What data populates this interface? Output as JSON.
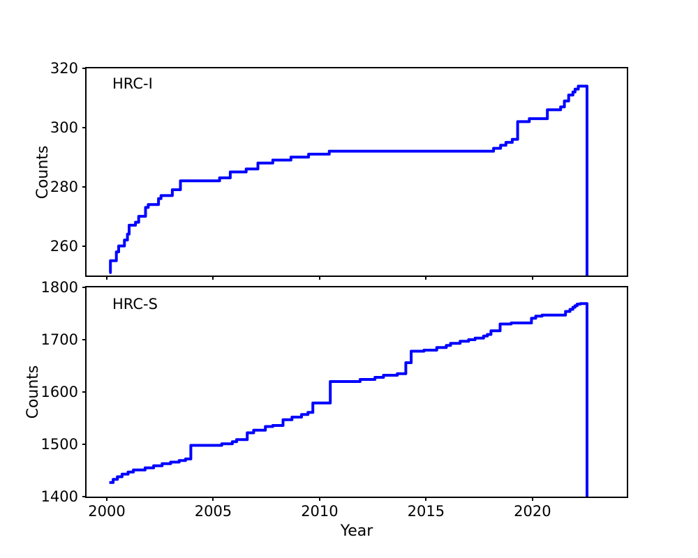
{
  "figure": {
    "background": "#ffffff",
    "line_color": "#0000ff",
    "axis_color": "#000000"
  },
  "chart_data": [
    {
      "type": "line",
      "line_style": "step",
      "annotation": "HRC-I",
      "ylabel": "Counts",
      "xlabel": "",
      "xlim": [
        1999.05,
        2024.43
      ],
      "ylim": [
        250,
        320
      ],
      "xticks": [
        2000,
        2005,
        2010,
        2015,
        2020
      ],
      "xtick_labels": [
        "2000",
        "2005",
        "2010",
        "2015",
        "2020"
      ],
      "xtick_labels_visible": false,
      "yticks": [
        260,
        280,
        300,
        320
      ],
      "ytick_labels": [
        "260",
        "280",
        "300",
        "320"
      ],
      "grid": false,
      "legend": "none",
      "points": [
        [
          2000.12,
          251
        ],
        [
          2000.17,
          255
        ],
        [
          2000.45,
          258
        ],
        [
          2000.56,
          260
        ],
        [
          2000.83,
          262
        ],
        [
          2000.97,
          264
        ],
        [
          2001.05,
          267
        ],
        [
          2001.35,
          268
        ],
        [
          2001.5,
          270
        ],
        [
          2001.82,
          273
        ],
        [
          2001.95,
          274
        ],
        [
          2002.43,
          276
        ],
        [
          2002.55,
          277
        ],
        [
          2003.08,
          279
        ],
        [
          2003.46,
          282
        ],
        [
          2005.3,
          283
        ],
        [
          2005.8,
          285
        ],
        [
          2006.55,
          286
        ],
        [
          2007.1,
          288
        ],
        [
          2007.8,
          289
        ],
        [
          2008.65,
          290
        ],
        [
          2009.48,
          291
        ],
        [
          2010.45,
          292
        ],
        [
          2018.17,
          293
        ],
        [
          2018.5,
          294
        ],
        [
          2018.75,
          295
        ],
        [
          2019.05,
          296
        ],
        [
          2019.3,
          302
        ],
        [
          2019.85,
          303
        ],
        [
          2020.7,
          306
        ],
        [
          2021.32,
          307
        ],
        [
          2021.5,
          309
        ],
        [
          2021.7,
          311
        ],
        [
          2021.9,
          312
        ],
        [
          2022.0,
          313
        ],
        [
          2022.15,
          314
        ],
        [
          2022.56,
          250
        ]
      ]
    },
    {
      "type": "line",
      "line_style": "step",
      "annotation": "HRC-S",
      "ylabel": "Counts",
      "xlabel": "Year",
      "xlim": [
        1999.05,
        2024.43
      ],
      "ylim": [
        1400,
        1800
      ],
      "xticks": [
        2000,
        2005,
        2010,
        2015,
        2020
      ],
      "xtick_labels": [
        "2000",
        "2005",
        "2010",
        "2015",
        "2020"
      ],
      "xtick_labels_visible": true,
      "yticks": [
        1400,
        1500,
        1600,
        1700,
        1800
      ],
      "ytick_labels": [
        "1400",
        "1500",
        "1600",
        "1700",
        "1800"
      ],
      "grid": false,
      "legend": "none",
      "points": [
        [
          2000.12,
          1427
        ],
        [
          2000.3,
          1433
        ],
        [
          2000.5,
          1438
        ],
        [
          2000.72,
          1443
        ],
        [
          2001.0,
          1447
        ],
        [
          2001.25,
          1451
        ],
        [
          2001.8,
          1455
        ],
        [
          2002.2,
          1459
        ],
        [
          2002.6,
          1463
        ],
        [
          2003.0,
          1466
        ],
        [
          2003.4,
          1469
        ],
        [
          2003.7,
          1472
        ],
        [
          2003.95,
          1498
        ],
        [
          2005.4,
          1501
        ],
        [
          2005.9,
          1505
        ],
        [
          2006.1,
          1509
        ],
        [
          2006.6,
          1522
        ],
        [
          2006.9,
          1527
        ],
        [
          2007.45,
          1534
        ],
        [
          2007.8,
          1536
        ],
        [
          2008.28,
          1547
        ],
        [
          2008.7,
          1552
        ],
        [
          2009.15,
          1557
        ],
        [
          2009.45,
          1561
        ],
        [
          2009.68,
          1579
        ],
        [
          2010.5,
          1620
        ],
        [
          2011.9,
          1624
        ],
        [
          2012.6,
          1628
        ],
        [
          2013.0,
          1632
        ],
        [
          2013.65,
          1635
        ],
        [
          2014.05,
          1656
        ],
        [
          2014.3,
          1678
        ],
        [
          2014.9,
          1680
        ],
        [
          2015.5,
          1685
        ],
        [
          2015.95,
          1689
        ],
        [
          2016.15,
          1693
        ],
        [
          2016.6,
          1697
        ],
        [
          2017.0,
          1700
        ],
        [
          2017.3,
          1703
        ],
        [
          2017.7,
          1707
        ],
        [
          2017.88,
          1710
        ],
        [
          2018.05,
          1717
        ],
        [
          2018.48,
          1730
        ],
        [
          2019.0,
          1732
        ],
        [
          2019.95,
          1741
        ],
        [
          2020.15,
          1745
        ],
        [
          2020.45,
          1747
        ],
        [
          2021.55,
          1754
        ],
        [
          2021.76,
          1758
        ],
        [
          2021.9,
          1762
        ],
        [
          2022.0,
          1765
        ],
        [
          2022.1,
          1768
        ],
        [
          2022.25,
          1769
        ],
        [
          2022.56,
          1400
        ]
      ]
    }
  ]
}
